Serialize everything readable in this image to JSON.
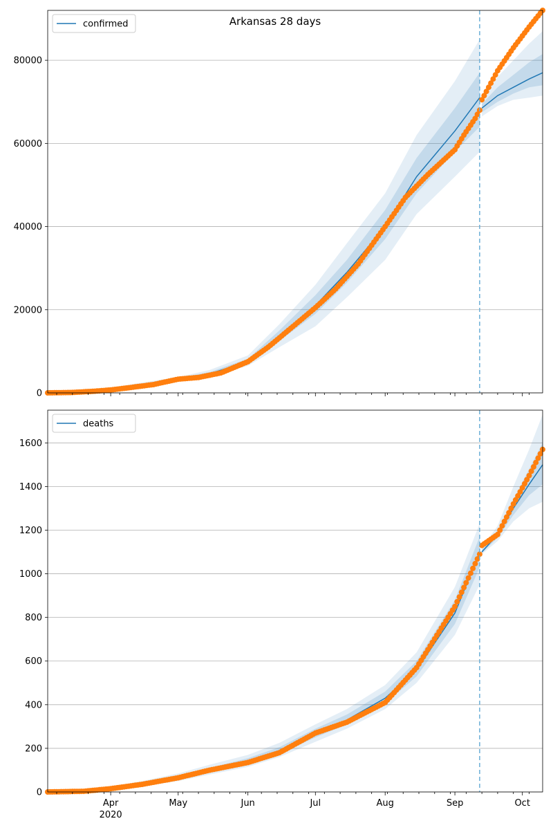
{
  "title": "Arkansas 28 days",
  "colors": {
    "model": "#1f77b4",
    "observed": "#ff7f0e",
    "band": "#1f77b4",
    "grid": "#b0b0b0",
    "cutoff": "#6baed6"
  },
  "x_tick_labels": [
    "Apr",
    "May",
    "Jun",
    "Jul",
    "Aug",
    "Sep",
    "Oct"
  ],
  "x_year_label": "2020",
  "chart_data": [
    {
      "type": "line",
      "legend": "confirmed",
      "legend_position": "top-left",
      "grid": true,
      "xlim": [
        "2020-03-04",
        "2020-10-10"
      ],
      "ylim": [
        0,
        92000
      ],
      "y_ticks": [
        0,
        20000,
        40000,
        60000,
        80000
      ],
      "forecast_start": "2020-09-12",
      "model": {
        "x": [
          "2020-03-04",
          "2020-03-15",
          "2020-04-01",
          "2020-04-15",
          "2020-05-01",
          "2020-05-15",
          "2020-06-01",
          "2020-06-15",
          "2020-07-01",
          "2020-07-15",
          "2020-08-01",
          "2020-08-15",
          "2020-09-01",
          "2020-09-12"
        ],
        "y": [
          0,
          100,
          900,
          2000,
          3400,
          4600,
          7500,
          13500,
          21000,
          29000,
          40000,
          52000,
          63000,
          71000
        ],
        "band_outer_low": [
          0,
          50,
          700,
          1500,
          3000,
          4000,
          6500,
          11000,
          16000,
          23000,
          32000,
          43000,
          52000,
          58000
        ],
        "band_outer_high": [
          0,
          200,
          1200,
          2500,
          3800,
          5500,
          9000,
          16500,
          26000,
          36000,
          48000,
          62000,
          75000,
          85000
        ],
        "band_inner_low": [
          0,
          80,
          800,
          1800,
          3200,
          4300,
          7000,
          12500,
          19000,
          26500,
          37000,
          48000,
          58000,
          64000
        ],
        "band_inner_high": [
          0,
          150,
          1000,
          2200,
          3600,
          5000,
          8200,
          15000,
          23500,
          32000,
          44000,
          56500,
          68500,
          77000
        ]
      },
      "forecast": {
        "x": [
          "2020-09-13",
          "2020-09-20",
          "2020-09-27",
          "2020-10-04",
          "2020-10-10"
        ],
        "y": [
          68500,
          71500,
          73500,
          75500,
          77000
        ],
        "band_outer_low": [
          66500,
          69000,
          70500,
          71000,
          71500
        ],
        "band_outer_high": [
          70500,
          76000,
          80000,
          84000,
          87000
        ],
        "band_inner_low": [
          67500,
          70000,
          72000,
          73500,
          74000
        ],
        "band_inner_high": [
          69500,
          73500,
          76500,
          79500,
          81500
        ]
      },
      "observed": {
        "x": [
          "2020-03-04",
          "2020-03-15",
          "2020-03-25",
          "2020-04-01",
          "2020-04-10",
          "2020-04-20",
          "2020-05-01",
          "2020-05-10",
          "2020-05-20",
          "2020-06-01",
          "2020-06-10",
          "2020-06-20",
          "2020-07-01",
          "2020-07-10",
          "2020-07-20",
          "2020-08-01",
          "2020-08-10",
          "2020-08-20",
          "2020-09-01",
          "2020-09-05",
          "2020-09-10",
          "2020-09-12",
          "2020-09-13",
          "2020-09-20",
          "2020-09-27",
          "2020-10-04",
          "2020-10-10"
        ],
        "y": [
          0,
          100,
          400,
          700,
          1300,
          2000,
          3300,
          3700,
          4800,
          7500,
          11000,
          15500,
          20500,
          25000,
          31000,
          40000,
          47000,
          52500,
          58500,
          62000,
          66000,
          68000,
          70500,
          77500,
          83000,
          88000,
          92000
        ]
      }
    },
    {
      "type": "line",
      "legend": "deaths",
      "legend_position": "top-left",
      "grid": true,
      "xlim": [
        "2020-03-04",
        "2020-10-10"
      ],
      "ylim": [
        0,
        1750
      ],
      "y_ticks": [
        0,
        200,
        400,
        600,
        800,
        1000,
        1200,
        1400,
        1600
      ],
      "forecast_start": "2020-09-12",
      "model": {
        "x": [
          "2020-03-04",
          "2020-03-20",
          "2020-04-01",
          "2020-04-15",
          "2020-05-01",
          "2020-05-15",
          "2020-06-01",
          "2020-06-15",
          "2020-07-01",
          "2020-07-15",
          "2020-08-01",
          "2020-08-15",
          "2020-09-01",
          "2020-09-12"
        ],
        "y": [
          0,
          3,
          15,
          35,
          65,
          100,
          140,
          190,
          270,
          330,
          430,
          560,
          820,
          1100
        ],
        "band_outer_low": [
          0,
          0,
          8,
          25,
          50,
          80,
          115,
          160,
          230,
          290,
          380,
          500,
          720,
          950
        ],
        "band_outer_high": [
          0,
          6,
          25,
          50,
          85,
          125,
          170,
          225,
          310,
          380,
          490,
          640,
          940,
          1230
        ],
        "band_inner_low": [
          0,
          2,
          12,
          30,
          58,
          90,
          128,
          175,
          250,
          310,
          405,
          530,
          770,
          1030
        ],
        "band_inner_high": [
          0,
          4,
          18,
          40,
          72,
          110,
          155,
          205,
          290,
          355,
          460,
          600,
          880,
          1170
        ]
      },
      "forecast": {
        "x": [
          "2020-09-13",
          "2020-09-20",
          "2020-09-27",
          "2020-10-04",
          "2020-10-10"
        ],
        "y": [
          1100,
          1180,
          1300,
          1410,
          1500
        ],
        "band_outer_low": [
          1090,
          1150,
          1240,
          1300,
          1330
        ],
        "band_outer_high": [
          1120,
          1220,
          1400,
          1570,
          1730
        ],
        "band_inner_low": [
          1095,
          1165,
          1270,
          1360,
          1410
        ],
        "band_inner_high": [
          1110,
          1200,
          1340,
          1480,
          1600
        ]
      },
      "observed": {
        "x": [
          "2020-03-04",
          "2020-03-20",
          "2020-04-01",
          "2020-04-15",
          "2020-05-01",
          "2020-05-15",
          "2020-06-01",
          "2020-06-15",
          "2020-07-01",
          "2020-07-15",
          "2020-08-01",
          "2020-08-15",
          "2020-09-01",
          "2020-09-12",
          "2020-09-13",
          "2020-09-20",
          "2020-09-27",
          "2020-10-04",
          "2020-10-10"
        ],
        "y": [
          0,
          3,
          15,
          35,
          65,
          100,
          135,
          180,
          270,
          320,
          410,
          570,
          850,
          1090,
          1130,
          1180,
          1320,
          1450,
          1570
        ]
      }
    }
  ]
}
